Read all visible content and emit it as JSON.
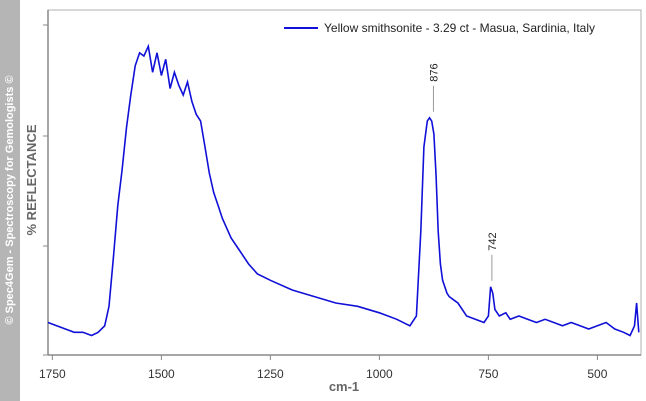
{
  "sidebar": {
    "credit": "© Spec4Gem - Spectroscopy for Gemologists ©"
  },
  "chart_data": {
    "type": "line",
    "title": "",
    "xlabel": "cm-1",
    "ylabel": "%  REFLECTANCE",
    "xlim": [
      1760,
      400
    ],
    "ylim": [
      0,
      100
    ],
    "x_reversed": true,
    "x_ticks": [
      1750,
      1500,
      1250,
      1000,
      750,
      500
    ],
    "x_tick_labels": [
      "1750",
      "1500",
      "1250",
      "1000",
      "750",
      "500"
    ],
    "y_tick_labels_shown": false,
    "legend": "top-right",
    "series": [
      {
        "name": "Yellow smithsonite - 3.29 ct - Masua, Sardinia, Italy",
        "color": "#1010d8",
        "x": [
          1760,
          1740,
          1720,
          1700,
          1680,
          1660,
          1645,
          1630,
          1620,
          1610,
          1600,
          1590,
          1580,
          1570,
          1560,
          1550,
          1540,
          1530,
          1520,
          1510,
          1500,
          1490,
          1480,
          1470,
          1460,
          1450,
          1440,
          1430,
          1420,
          1410,
          1400,
          1390,
          1380,
          1370,
          1360,
          1340,
          1320,
          1300,
          1280,
          1250,
          1200,
          1150,
          1100,
          1050,
          1000,
          960,
          930,
          915,
          905,
          898,
          890,
          885,
          880,
          875,
          870,
          865,
          860,
          855,
          850,
          845,
          840,
          830,
          820,
          800,
          780,
          760,
          750,
          745,
          740,
          735,
          725,
          710,
          700,
          680,
          660,
          640,
          620,
          600,
          580,
          560,
          540,
          520,
          500,
          480,
          460,
          440,
          425,
          415,
          410,
          405
        ],
        "y": [
          10,
          9,
          8,
          7,
          7,
          6,
          7,
          9,
          15,
          30,
          46,
          57,
          70,
          80,
          89,
          93,
          92,
          95,
          87,
          93,
          86,
          91,
          82,
          87,
          83,
          80,
          84,
          78,
          74,
          72,
          64,
          56,
          50,
          46,
          42,
          36,
          32,
          28,
          25,
          23,
          20,
          18,
          16,
          15,
          13,
          11,
          9,
          12,
          38,
          64,
          72,
          73,
          72,
          68,
          55,
          38,
          28,
          23,
          21,
          19,
          18,
          17,
          16,
          12,
          11,
          10,
          12,
          21,
          19,
          14,
          12,
          13,
          11,
          12,
          11,
          10,
          11,
          10,
          9,
          10,
          9,
          8,
          9,
          10,
          8,
          7,
          6,
          9,
          16,
          7
        ]
      }
    ],
    "annotations": [
      {
        "label": "876",
        "x": 876,
        "y": 73
      },
      {
        "label": "742",
        "x": 742,
        "y": 21
      }
    ]
  }
}
